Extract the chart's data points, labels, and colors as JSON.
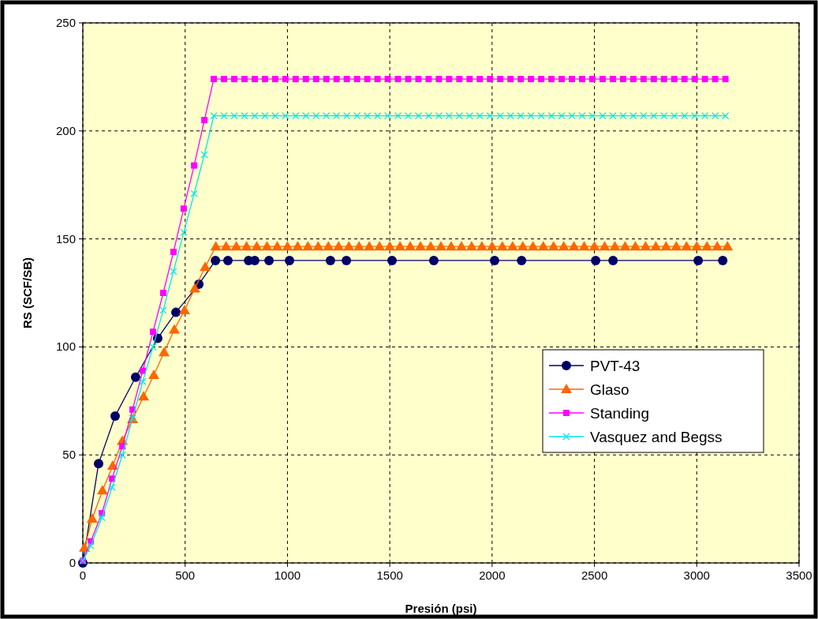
{
  "chart_data": {
    "type": "line",
    "xlabel": "Presión (psi)",
    "ylabel": "RS (SCF/SB)",
    "xlim": [
      0,
      3500
    ],
    "ylim": [
      0,
      250
    ],
    "xticks": [
      0,
      500,
      1000,
      1500,
      2000,
      2500,
      3000,
      3500
    ],
    "yticks": [
      0,
      50,
      100,
      150,
      200,
      250
    ],
    "grid": true,
    "legend": "right",
    "line_style": "solid",
    "series": [
      {
        "name": "PVT-43",
        "color": "#000066",
        "marker": "circle",
        "x": [
          0,
          77,
          158,
          258,
          366,
          455,
          567,
          648,
          709,
          810,
          840,
          910,
          1010,
          1210,
          1288,
          1511,
          1715,
          2012,
          2144,
          2506,
          2591,
          3007,
          3127
        ],
        "values": [
          0,
          46,
          68,
          86,
          104,
          116,
          129,
          140,
          140,
          140,
          140,
          140,
          140,
          140,
          140,
          140,
          140,
          140,
          140,
          140,
          140,
          140,
          140
        ]
      },
      {
        "name": "Glaso",
        "color": "#ff6600",
        "marker": "triangle",
        "x": [
          8,
          46,
          96,
          146,
          193,
          243,
          297,
          347,
          397,
          447,
          497,
          547,
          598,
          650,
          700,
          750,
          800,
          850,
          900,
          950,
          1000,
          1050,
          1100,
          1150,
          1200,
          1250,
          1300,
          1350,
          1400,
          1450,
          1500,
          1550,
          1600,
          1650,
          1700,
          1750,
          1800,
          1850,
          1900,
          1950,
          2000,
          2050,
          2100,
          2150,
          2200,
          2250,
          2300,
          2350,
          2400,
          2450,
          2500,
          2550,
          2600,
          2650,
          2700,
          2750,
          2800,
          2850,
          2900,
          2950,
          3000,
          3050,
          3100,
          3150
        ],
        "values": [
          7,
          20.5,
          33.5,
          45,
          56.5,
          66.5,
          77,
          87,
          97.5,
          108,
          117,
          127,
          137,
          146.5,
          146.5,
          146.5,
          146.5,
          146.5,
          146.5,
          146.5,
          146.5,
          146.5,
          146.5,
          146.5,
          146.5,
          146.5,
          146.5,
          146.5,
          146.5,
          146.5,
          146.5,
          146.5,
          146.5,
          146.5,
          146.5,
          146.5,
          146.5,
          146.5,
          146.5,
          146.5,
          146.5,
          146.5,
          146.5,
          146.5,
          146.5,
          146.5,
          146.5,
          146.5,
          146.5,
          146.5,
          146.5,
          146.5,
          146.5,
          146.5,
          146.5,
          146.5,
          146.5,
          146.5,
          146.5,
          146.5,
          146.5,
          146.5,
          146.5,
          146.5
        ]
      },
      {
        "name": "Standing",
        "color": "#ff00ff",
        "marker": "square",
        "x": [
          0,
          39,
          93,
          143,
          193,
          243,
          293,
          343,
          393,
          443,
          493,
          544,
          594,
          640,
          690,
          740,
          790,
          840,
          890,
          940,
          990,
          1040,
          1090,
          1140,
          1190,
          1240,
          1290,
          1340,
          1390,
          1440,
          1490,
          1540,
          1590,
          1640,
          1690,
          1740,
          1790,
          1840,
          1890,
          1940,
          1990,
          2040,
          2090,
          2140,
          2190,
          2240,
          2290,
          2340,
          2390,
          2440,
          2490,
          2540,
          2590,
          2640,
          2690,
          2740,
          2790,
          2840,
          2890,
          2940,
          2990,
          3040,
          3090,
          3140
        ],
        "values": [
          1,
          10,
          23,
          39,
          54,
          71,
          89,
          107,
          125,
          144,
          164,
          184,
          205,
          224,
          224,
          224,
          224,
          224,
          224,
          224,
          224,
          224,
          224,
          224,
          224,
          224,
          224,
          224,
          224,
          224,
          224,
          224,
          224,
          224,
          224,
          224,
          224,
          224,
          224,
          224,
          224,
          224,
          224,
          224,
          224,
          224,
          224,
          224,
          224,
          224,
          224,
          224,
          224,
          224,
          224,
          224,
          224,
          224,
          224,
          224,
          224,
          224,
          224,
          224
        ]
      },
      {
        "name": "Vasquez and Begss",
        "color": "#00e5ee",
        "marker": "cross",
        "x": [
          0,
          39,
          93,
          143,
          193,
          243,
          293,
          343,
          393,
          443,
          493,
          544,
          594,
          640,
          690,
          740,
          790,
          840,
          890,
          940,
          990,
          1040,
          1090,
          1140,
          1190,
          1240,
          1290,
          1340,
          1390,
          1440,
          1490,
          1540,
          1590,
          1640,
          1690,
          1740,
          1790,
          1840,
          1890,
          1940,
          1990,
          2040,
          2090,
          2140,
          2190,
          2240,
          2290,
          2340,
          2390,
          2440,
          2490,
          2540,
          2590,
          2640,
          2690,
          2740,
          2790,
          2840,
          2890,
          2940,
          2990,
          3040,
          3090,
          3140
        ],
        "values": [
          1,
          8,
          21,
          35,
          50,
          67,
          84,
          100,
          117,
          135,
          153,
          171,
          189,
          207,
          207,
          207,
          207,
          207,
          207,
          207,
          207,
          207,
          207,
          207,
          207,
          207,
          207,
          207,
          207,
          207,
          207,
          207,
          207,
          207,
          207,
          207,
          207,
          207,
          207,
          207,
          207,
          207,
          207,
          207,
          207,
          207,
          207,
          207,
          207,
          207,
          207,
          207,
          207,
          207,
          207,
          207,
          207,
          207,
          207,
          207,
          207,
          207,
          207,
          207
        ]
      }
    ]
  }
}
